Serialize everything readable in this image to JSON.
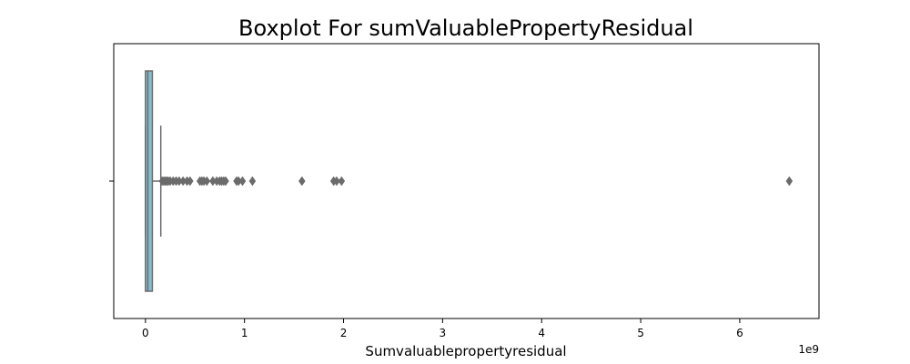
{
  "chart_data": {
    "type": "boxplot",
    "title": "Boxplot For sumValuablePropertyResidual",
    "xlabel": "Sumvaluablepropertyresidual",
    "ylabel": "",
    "x_offset_label": "1e9",
    "x_scale_multiplier": 1000000000,
    "xlim": [
      -0.32,
      6.8
    ],
    "x_ticks": [
      0,
      1,
      2,
      3,
      4,
      5,
      6
    ],
    "x_tick_labels": [
      "0",
      "1",
      "2",
      "3",
      "4",
      "5",
      "6"
    ],
    "orientation": "horizontal",
    "grid": false,
    "box": {
      "whisker_low": 0.0,
      "q1": 0.0,
      "median": 0.025,
      "q3": 0.07,
      "whisker_high": 0.155
    },
    "outliers": [
      0.17,
      0.185,
      0.2,
      0.215,
      0.23,
      0.25,
      0.28,
      0.31,
      0.34,
      0.38,
      0.42,
      0.45,
      0.55,
      0.57,
      0.59,
      0.62,
      0.68,
      0.72,
      0.75,
      0.77,
      0.79,
      0.81,
      0.92,
      0.94,
      0.98,
      1.08,
      1.58,
      1.9,
      1.93,
      1.98,
      6.5
    ],
    "colors": {
      "box_fill": "#86c0d3",
      "line": "#6b6b6b",
      "outlier": "#6b6b6b"
    }
  }
}
